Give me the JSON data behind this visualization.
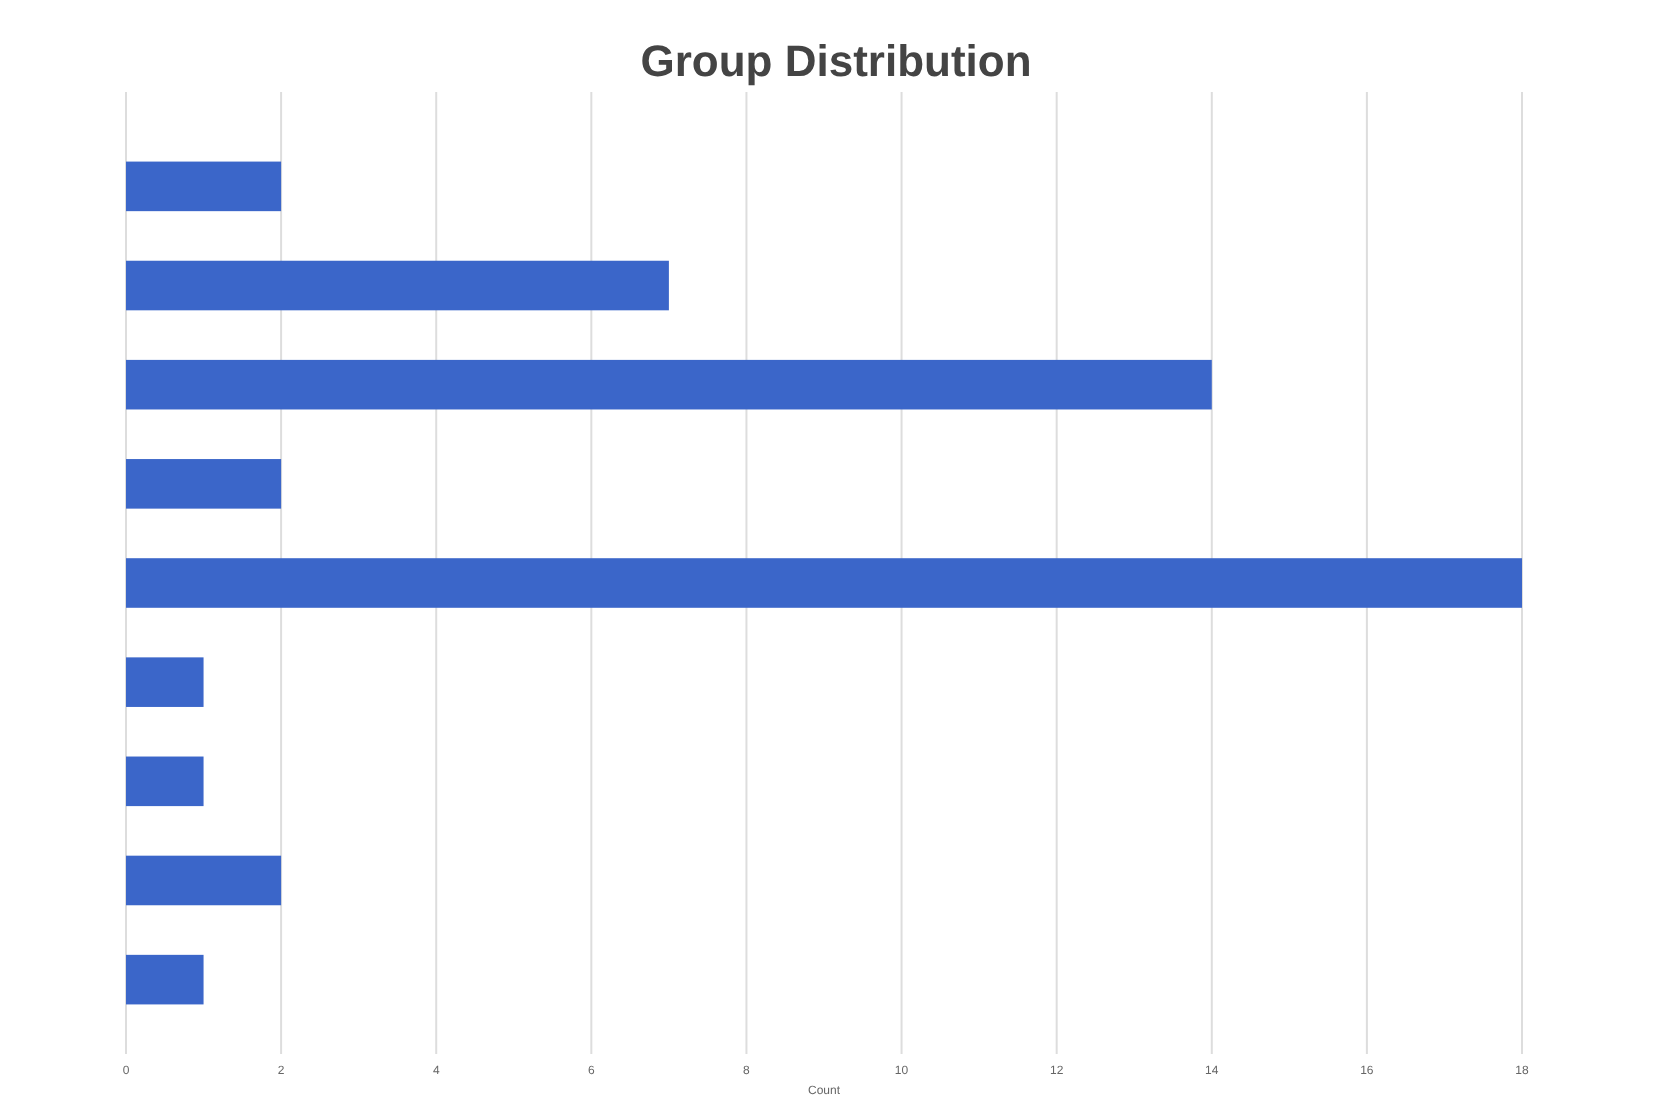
{
  "chart_data": {
    "type": "bar",
    "orientation": "horizontal",
    "title": "Group Distribution",
    "xlabel": "Count",
    "categories": [
      null,
      null,
      null,
      null,
      null,
      null,
      null,
      null,
      null
    ],
    "values": [
      2,
      7,
      14,
      2,
      18,
      1,
      1,
      2,
      1
    ],
    "color": "#3b66c9",
    "xlim": [
      0,
      18
    ],
    "xticks": [
      0,
      2,
      4,
      6,
      8,
      10,
      12,
      14,
      16,
      18
    ],
    "grid": "x"
  }
}
